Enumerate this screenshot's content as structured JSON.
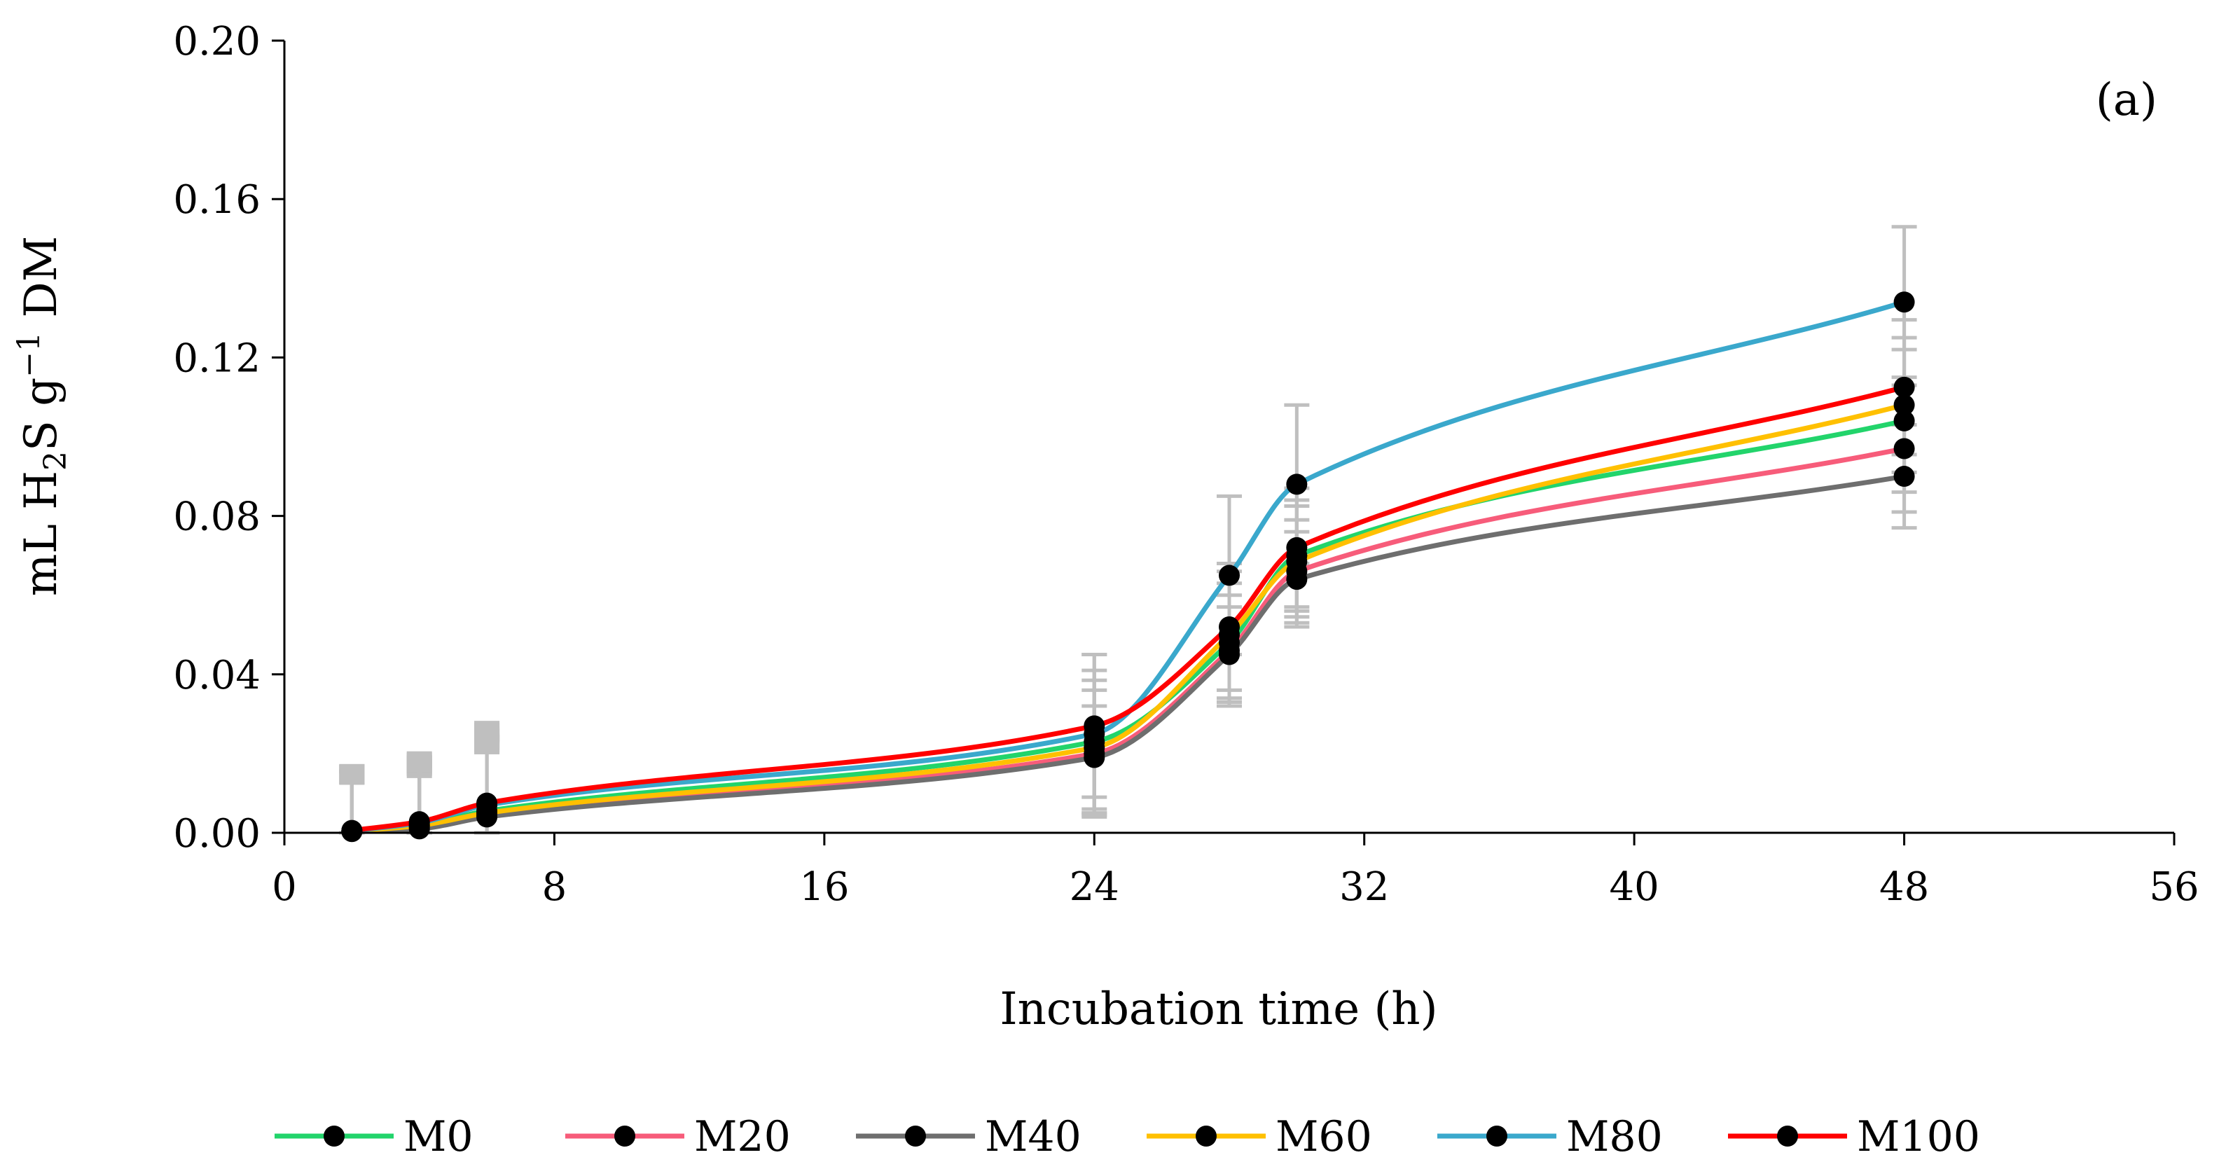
{
  "chart_data": {
    "type": "line",
    "panel_label": "(a)",
    "xlabel": "Incubation time (h)",
    "ylabel": {
      "prefix": "mL H",
      "sub": "2",
      "mid": "S g",
      "sup": "−1",
      "suffix": " DM"
    },
    "xlim": [
      0,
      56
    ],
    "ylim": [
      0,
      0.2
    ],
    "x_ticks": [
      "0",
      "8",
      "16",
      "24",
      "32",
      "40",
      "48",
      "56"
    ],
    "y_ticks": [
      "0.00",
      "0.04",
      "0.08",
      "0.12",
      "0.16",
      "0.20"
    ],
    "grid": false,
    "legend_position": "bottom",
    "marker_color": "#000000",
    "error_bar_color": "#bfbfbf",
    "x": [
      2,
      4,
      6,
      24,
      28,
      30,
      48
    ],
    "series": [
      {
        "name": "M0",
        "color": "#22d46b",
        "values": [
          0.0005,
          0.002,
          0.0055,
          0.023,
          0.048,
          0.07,
          0.104
        ],
        "errors": [
          0.015,
          0.016,
          0.019,
          0.018,
          0.015,
          0.014,
          0.018
        ]
      },
      {
        "name": "M20",
        "color": "#f75c7a",
        "values": [
          0.0004,
          0.0015,
          0.0045,
          0.02,
          0.046,
          0.066,
          0.097
        ],
        "errors": [
          0.015,
          0.016,
          0.019,
          0.016,
          0.014,
          0.013,
          0.016
        ]
      },
      {
        "name": "M40",
        "color": "#6e6e6e",
        "values": [
          0.0003,
          0.001,
          0.004,
          0.019,
          0.045,
          0.064,
          0.09
        ],
        "errors": [
          0.015,
          0.016,
          0.019,
          0.013,
          0.012,
          0.012,
          0.013
        ]
      },
      {
        "name": "M60",
        "color": "#ffc000",
        "values": [
          0.0004,
          0.0018,
          0.005,
          0.0215,
          0.05,
          0.0685,
          0.108
        ],
        "errors": [
          0.015,
          0.016,
          0.019,
          0.017,
          0.016,
          0.014,
          0.017
        ]
      },
      {
        "name": "M80",
        "color": "#3aa8cc",
        "values": [
          0.0005,
          0.0025,
          0.007,
          0.025,
          0.065,
          0.088,
          0.134
        ],
        "errors": [
          0.015,
          0.016,
          0.019,
          0.02,
          0.02,
          0.02,
          0.019
        ]
      },
      {
        "name": "M100",
        "color": "#ff0000",
        "values": [
          0.0006,
          0.0028,
          0.0075,
          0.027,
          0.052,
          0.072,
          0.1125
        ],
        "errors": [
          0.015,
          0.016,
          0.019,
          0.018,
          0.016,
          0.015,
          0.017
        ]
      }
    ]
  }
}
